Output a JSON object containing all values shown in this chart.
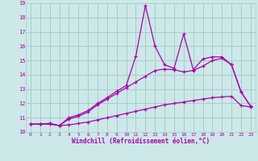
{
  "xlabel": "Windchill (Refroidissement éolien,°C)",
  "background_color": "#cce8e8",
  "grid_color": "#aacccc",
  "line_color": "#aa00aa",
  "xlim": [
    -0.5,
    23.5
  ],
  "ylim": [
    10,
    19
  ],
  "xtick_labels": [
    "0",
    "1",
    "2",
    "3",
    "4",
    "5",
    "6",
    "7",
    "8",
    "9",
    "10",
    "11",
    "12",
    "13",
    "14",
    "15",
    "16",
    "17",
    "18",
    "19",
    "20",
    "21",
    "22",
    "23"
  ],
  "ytick_labels": [
    "10",
    "11",
    "12",
    "13",
    "14",
    "15",
    "16",
    "17",
    "18",
    "19"
  ],
  "series_bottom": [
    10.55,
    10.55,
    10.55,
    10.45,
    10.5,
    10.6,
    10.7,
    10.85,
    11.0,
    11.15,
    11.3,
    11.45,
    11.6,
    11.75,
    11.9,
    12.0,
    12.1,
    12.2,
    12.3,
    12.4,
    12.45,
    12.5,
    11.85,
    11.75
  ],
  "series_mid": [
    10.55,
    10.55,
    10.6,
    10.45,
    10.9,
    11.1,
    11.4,
    11.9,
    12.3,
    12.7,
    13.1,
    13.5,
    13.9,
    14.3,
    14.4,
    14.35,
    14.2,
    14.3,
    14.6,
    15.0,
    15.15,
    14.7,
    12.8,
    11.8
  ],
  "series_top": [
    10.55,
    10.55,
    10.6,
    10.45,
    11.0,
    11.2,
    11.5,
    12.0,
    12.4,
    12.85,
    13.25,
    15.3,
    18.85,
    16.0,
    14.7,
    14.45,
    16.85,
    14.35,
    15.1,
    15.25,
    15.25,
    14.7,
    12.8,
    11.8
  ]
}
